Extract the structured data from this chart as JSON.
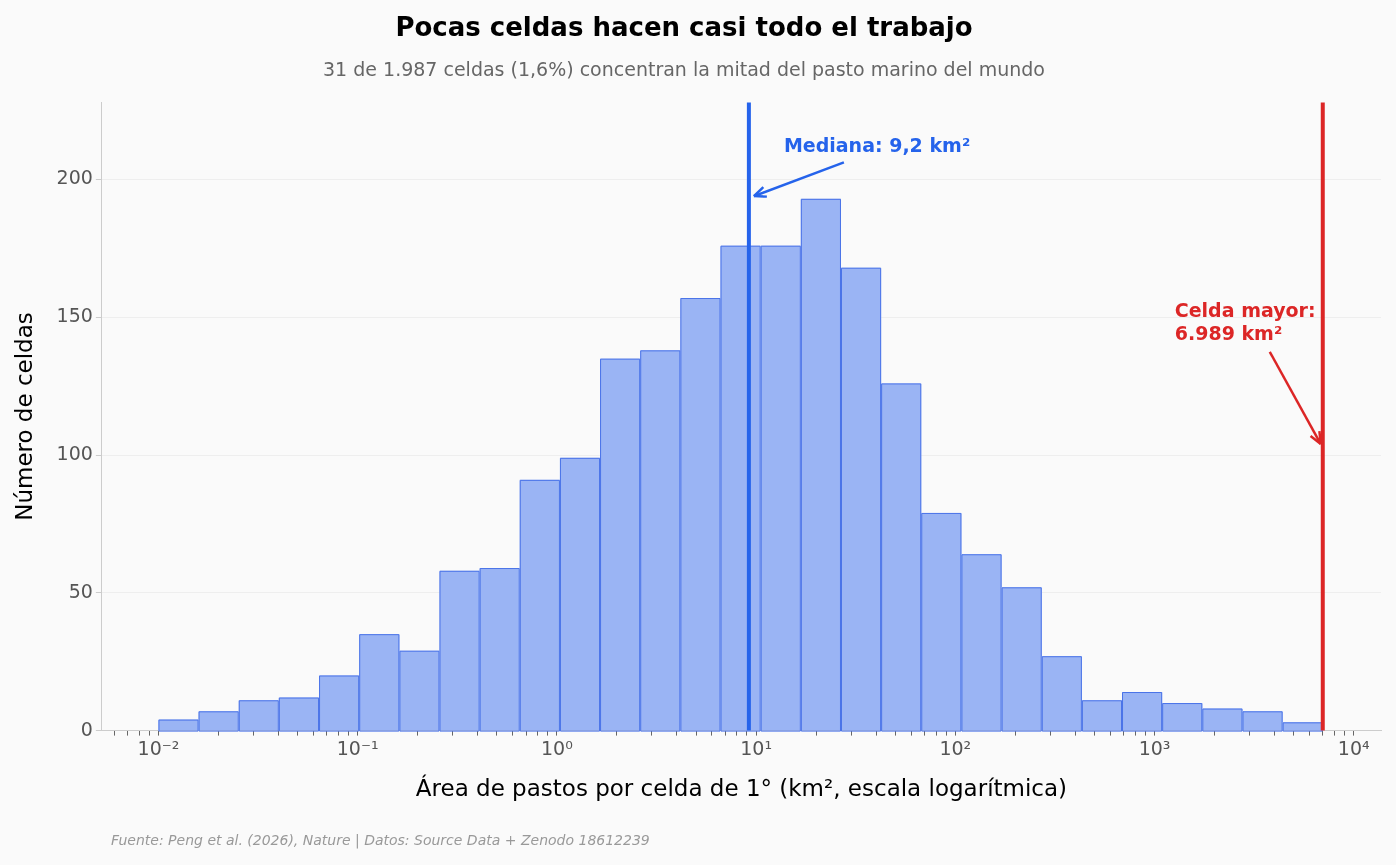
{
  "chart_data": {
    "type": "histogram",
    "title": "Pocas celdas hacen casi todo el trabajo",
    "subtitle": "31 de 1.987 celdas (1,6%) concentran la mitad del pasto marino del mundo",
    "xlabel": "Área de pastos por celda de 1° (km², escala logarítmica)",
    "ylabel": "Número de celdas",
    "bins": [
      0.01,
      0.0159,
      0.0253,
      0.0402,
      0.064,
      0.1018,
      0.162,
      0.2575,
      0.4095,
      0.651,
      1.036,
      1.647,
      2.62,
      4.168,
      6.628,
      10.54,
      16.77,
      26.67,
      42.42,
      67.46,
      107.3,
      170.7,
      271.5,
      431.8,
      686.7,
      1092,
      1737,
      2763,
      4395,
      6989
    ],
    "values": [
      4,
      7,
      11,
      12,
      20,
      35,
      29,
      58,
      59,
      91,
      99,
      135,
      138,
      157,
      176,
      176,
      193,
      168,
      126,
      79,
      64,
      52,
      27,
      11,
      14,
      10,
      8,
      7,
      3
    ],
    "color": "#9ab4f4",
    "log": "x",
    "xlim": [
      0.0052,
      13700
    ],
    "ylim": [
      0,
      228
    ],
    "xticks": [
      {
        "value": 0.006,
        "label": null
      },
      {
        "value": 0.007,
        "label": null
      },
      {
        "value": 0.008,
        "label": null
      },
      {
        "value": 0.009,
        "label": null
      },
      {
        "value": 0.01,
        "label": "10⁻²"
      },
      {
        "value": 0.02,
        "label": null
      },
      {
        "value": 0.03,
        "label": null
      },
      {
        "value": 0.04,
        "label": null
      },
      {
        "value": 0.05,
        "label": null
      },
      {
        "value": 0.06,
        "label": null
      },
      {
        "value": 0.07,
        "label": null
      },
      {
        "value": 0.08,
        "label": null
      },
      {
        "value": 0.09,
        "label": null
      },
      {
        "value": 0.1,
        "label": "10⁻¹"
      },
      {
        "value": 0.2,
        "label": null
      },
      {
        "value": 0.3,
        "label": null
      },
      {
        "value": 0.4,
        "label": null
      },
      {
        "value": 0.5,
        "label": null
      },
      {
        "value": 0.6,
        "label": null
      },
      {
        "value": 0.7,
        "label": null
      },
      {
        "value": 0.8,
        "label": null
      },
      {
        "value": 0.9,
        "label": null
      },
      {
        "value": 1,
        "label": "10⁰"
      },
      {
        "value": 2,
        "label": null
      },
      {
        "value": 3,
        "label": null
      },
      {
        "value": 4,
        "label": null
      },
      {
        "value": 5,
        "label": null
      },
      {
        "value": 6,
        "label": null
      },
      {
        "value": 7,
        "label": null
      },
      {
        "value": 8,
        "label": null
      },
      {
        "value": 9,
        "label": null
      },
      {
        "value": 10,
        "label": "10¹"
      },
      {
        "value": 20,
        "label": null
      },
      {
        "value": 30,
        "label": null
      },
      {
        "value": 40,
        "label": null
      },
      {
        "value": 50,
        "label": null
      },
      {
        "value": 60,
        "label": null
      },
      {
        "value": 70,
        "label": null
      },
      {
        "value": 80,
        "label": null
      },
      {
        "value": 90,
        "label": null
      },
      {
        "value": 100,
        "label": "10²"
      },
      {
        "value": 200,
        "label": null
      },
      {
        "value": 300,
        "label": null
      },
      {
        "value": 400,
        "label": null
      },
      {
        "value": 500,
        "label": null
      },
      {
        "value": 600,
        "label": null
      },
      {
        "value": 700,
        "label": null
      },
      {
        "value": 800,
        "label": null
      },
      {
        "value": 900,
        "label": null
      },
      {
        "value": 1000,
        "label": "10³"
      },
      {
        "value": 2000,
        "label": null
      },
      {
        "value": 3000,
        "label": null
      },
      {
        "value": 4000,
        "label": null
      },
      {
        "value": 5000,
        "label": null
      },
      {
        "value": 6000,
        "label": null
      },
      {
        "value": 7000,
        "label": null
      },
      {
        "value": 8000,
        "label": null
      },
      {
        "value": 9000,
        "label": null
      },
      {
        "value": 10000,
        "label": "10⁴"
      }
    ],
    "yticks": [
      0,
      50,
      100,
      150,
      200
    ],
    "grid": "y",
    "legend": false,
    "ref_lines": [
      {
        "axis": "x",
        "value": 9.2,
        "label": "Mediana: 9,2 km²",
        "color": "#2563eb"
      },
      {
        "axis": "x",
        "value": 6989,
        "label": "Celda mayor:\n6.989 km²",
        "color": "#dc2626"
      }
    ],
    "annotations": [
      "Fuente: Peng et al. (2026), Nature | Datos: Source Data + Zenodo 18612239"
    ]
  }
}
